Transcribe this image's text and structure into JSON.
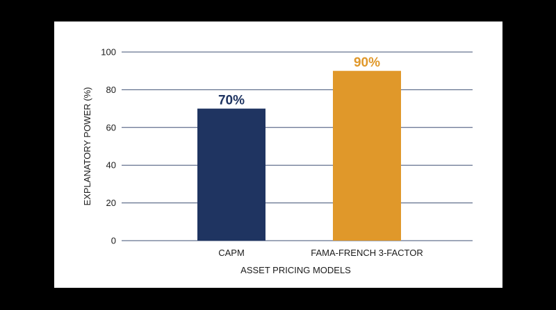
{
  "chart_data": {
    "type": "bar",
    "title": "",
    "categories": [
      "CAPM",
      "FAMA-FRENCH 3-FACTOR"
    ],
    "values": [
      70,
      90
    ],
    "data_labels": [
      "70%",
      "90%"
    ],
    "bar_colors": [
      "#1f3461",
      "#e0982a"
    ],
    "label_colors": [
      "#1f3461",
      "#e0982a"
    ],
    "xlabel": "ASSET PRICING MODELS",
    "ylabel": "EXPLANATORY POWER (%)",
    "ylim": [
      0,
      100
    ],
    "yticks": [
      "0",
      "20",
      "40",
      "60",
      "80",
      "100"
    ],
    "ytick_values": [
      0,
      20,
      40,
      60,
      80,
      100
    ],
    "grid": true,
    "grid_color": "#3e4f73",
    "background": "#ffffff",
    "page_background": "#000000"
  }
}
